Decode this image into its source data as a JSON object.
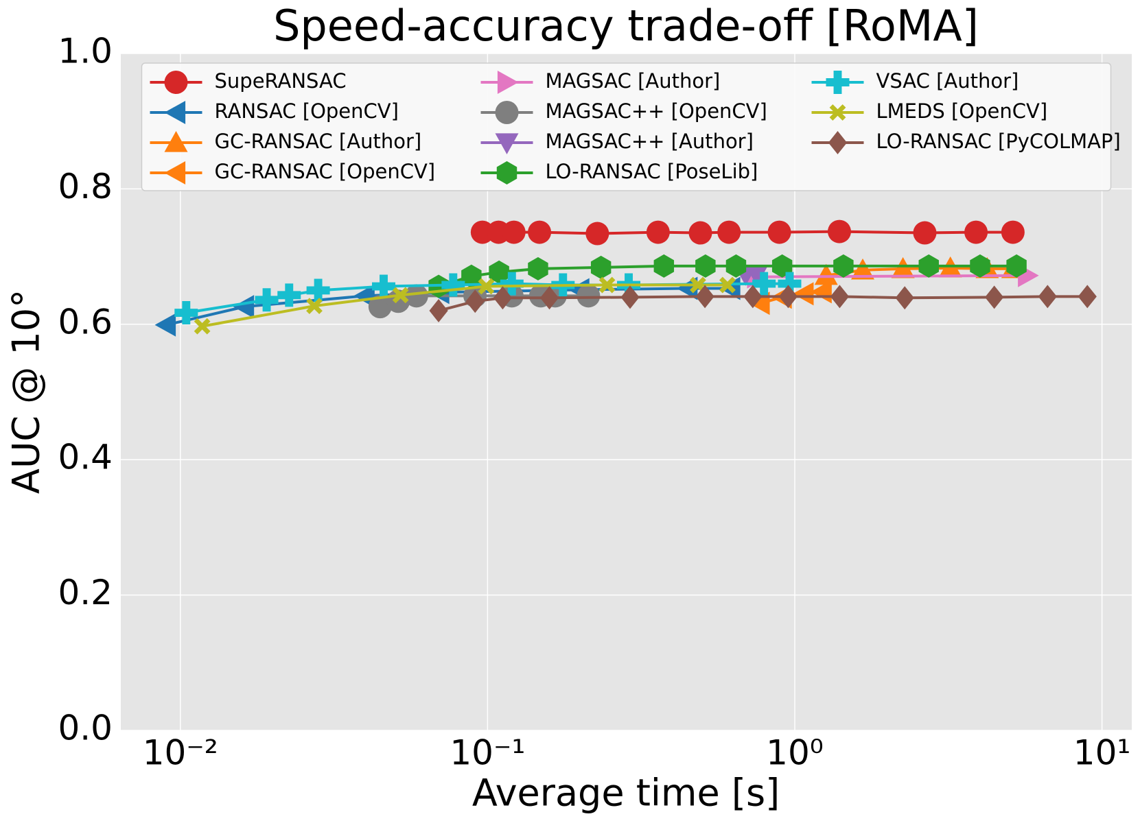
{
  "chart_data": {
    "type": "line",
    "title": "Speed-accuracy trade-off [RoMA]",
    "x_label": "Average time [s]",
    "y_label": "AUC @ 10°",
    "xscale": "log",
    "grid": true,
    "legend": "upper center",
    "xlim": [
      0.0064,
      12.5
    ],
    "ylim": [
      0,
      1
    ],
    "xticks": [
      {
        "value": 0.01,
        "label": "10⁻²"
      },
      {
        "value": 0.1,
        "label": "10⁻¹"
      },
      {
        "value": 1,
        "label": "10⁰"
      },
      {
        "value": 10,
        "label": "10¹"
      }
    ],
    "yticks": [
      {
        "value": 0,
        "label": "0.0"
      },
      {
        "value": 0.2,
        "label": "0.2"
      },
      {
        "value": 0.4,
        "label": "0.4"
      },
      {
        "value": 0.6,
        "label": "0.6"
      },
      {
        "value": 0.8,
        "label": "0.8"
      },
      {
        "value": 1,
        "label": "1.0"
      }
    ],
    "series": [
      {
        "name": "SupeRANSAC",
        "color": "#d62728",
        "marker": "circle",
        "x": [
          0.0962,
          0.1086,
          0.1218,
          0.1476,
          0.2277,
          0.359,
          0.493,
          0.611,
          0.891,
          1.397,
          2.65,
          3.89,
          5.13
        ],
        "values": [
          0.736,
          0.736,
          0.736,
          0.736,
          0.734,
          0.736,
          0.735,
          0.736,
          0.736,
          0.737,
          0.735,
          0.736,
          0.736
        ]
      },
      {
        "name": "RANSAC [OpenCV]",
        "color": "#1f77b4",
        "marker": "triangle-left",
        "x": [
          0.00901,
          0.0162,
          0.04,
          0.07,
          0.2,
          0.45,
          0.62
        ],
        "values": [
          0.599,
          0.626,
          0.642,
          0.647,
          0.651,
          0.653,
          0.653
        ]
      },
      {
        "name": "GC-RANSAC [Author]",
        "color": "#ff7f0e",
        "marker": "triangle-up",
        "x": [
          1.265,
          1.664,
          2.25,
          3.21,
          4.23,
          5.13
        ],
        "values": [
          0.672,
          0.68,
          0.682,
          0.683,
          0.682,
          0.682
        ]
      },
      {
        "name": "GC-RANSAC [OpenCV]",
        "color": "#ff7f0e",
        "marker": "triangle-left",
        "x": [
          0.773,
          0.912,
          1.074,
          1.23
        ],
        "values": [
          0.631,
          0.64,
          0.645,
          0.648
        ]
      },
      {
        "name": "MAGSAC [Author]",
        "color": "#e377c2",
        "marker": "triangle-right",
        "x": [
          0.75,
          5.71
        ],
        "values": [
          0.67,
          0.672
        ]
      },
      {
        "name": "MAGSAC++ [OpenCV]",
        "color": "#7f7f7f",
        "marker": "circle",
        "x": [
          0.0447,
          0.0512,
          0.0587,
          0.091,
          0.12,
          0.149,
          0.166,
          0.213
        ],
        "values": [
          0.626,
          0.634,
          0.642,
          0.642,
          0.642,
          0.642,
          0.642,
          0.642
        ]
      },
      {
        "name": "MAGSAC++ [Author]",
        "color": "#9467bd",
        "marker": "triangle-down",
        "x": [
          0.692,
          0.752
        ],
        "values": [
          0.674,
          0.674
        ]
      },
      {
        "name": "LO-RANSAC [PoseLib]",
        "color": "#2ca02c",
        "marker": "hexagon",
        "x": [
          0.0693,
          0.0886,
          0.109,
          0.146,
          0.234,
          0.375,
          0.512,
          0.644,
          0.91,
          1.44,
          2.73,
          4.01,
          5.27
        ],
        "values": [
          0.656,
          0.671,
          0.677,
          0.682,
          0.684,
          0.686,
          0.686,
          0.686,
          0.686,
          0.686,
          0.686,
          0.686,
          0.686
        ]
      },
      {
        "name": "VSAC [Author]",
        "color": "#17becf",
        "marker": "plus",
        "x": [
          0.01045,
          0.0191,
          0.0226,
          0.0281,
          0.0459,
          0.0773,
          0.12,
          0.176,
          0.288,
          0.794,
          0.962
        ],
        "values": [
          0.617,
          0.636,
          0.643,
          0.65,
          0.656,
          0.658,
          0.66,
          0.658,
          0.658,
          0.66,
          0.66
        ]
      },
      {
        "name": "LMEDS [OpenCV]",
        "color": "#bcbd22",
        "marker": "x",
        "x": [
          0.01178,
          0.0273,
          0.0521,
          0.099,
          0.245,
          0.484,
          0.604
        ],
        "values": [
          0.597,
          0.627,
          0.643,
          0.656,
          0.658,
          0.658,
          0.658
        ]
      },
      {
        "name": "LO-RANSAC [PyCOLMAP]",
        "color": "#8c564b",
        "marker": "diamond",
        "x": [
          0.0693,
          0.0911,
          0.112,
          0.159,
          0.291,
          0.51,
          0.73,
          0.952,
          1.4,
          2.28,
          4.46,
          6.65,
          8.96
        ],
        "values": [
          0.62,
          0.634,
          0.639,
          0.639,
          0.64,
          0.641,
          0.641,
          0.641,
          0.641,
          0.639,
          0.64,
          0.641,
          0.641
        ]
      }
    ]
  }
}
